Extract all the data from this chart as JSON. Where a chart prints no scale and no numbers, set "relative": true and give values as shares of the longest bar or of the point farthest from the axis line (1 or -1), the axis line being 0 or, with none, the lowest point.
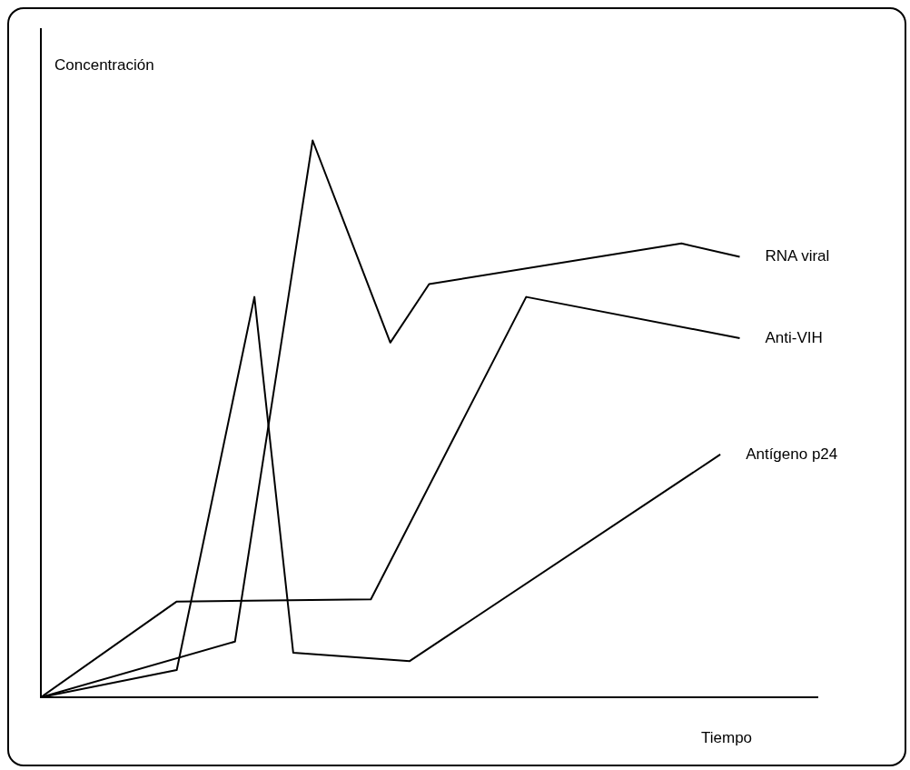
{
  "chart_data": {
    "type": "line",
    "relative": true,
    "xlabel": "Tiempo",
    "ylabel": "Concentración",
    "grid": false,
    "legend": false,
    "tick_labels": false,
    "marker": "none",
    "line_style": "solid",
    "categories": [
      null,
      null,
      null,
      null,
      null,
      null,
      null,
      null,
      null,
      null,
      null,
      null,
      null,
      null,
      null,
      null,
      null,
      null,
      null,
      null,
      null,
      null,
      null,
      null,
      null,
      null,
      null,
      null,
      null,
      null,
      null,
      null,
      null,
      null,
      null,
      null,
      null,
      null,
      null,
      null,
      null
    ],
    "series": [
      {
        "name": "RNA viral",
        "color": "#000000",
        "values": [
          0,
          null,
          null,
          null,
          null,
          null,
          null,
          null,
          null,
          null,
          0.1,
          null,
          null,
          null,
          1,
          null,
          null,
          null,
          0.637,
          null,
          0.742,
          null,
          null,
          null,
          null,
          null,
          null,
          null,
          null,
          null,
          null,
          null,
          null,
          0.815,
          null,
          null,
          0.791,
          null,
          null,
          null,
          null
        ]
      },
      {
        "name": "Anti-VIH",
        "color": "#000000",
        "values": [
          0,
          null,
          null,
          null,
          null,
          null,
          null,
          0.172,
          null,
          null,
          null,
          null,
          null,
          null,
          null,
          null,
          null,
          0.176,
          null,
          null,
          null,
          null,
          null,
          null,
          null,
          0.719,
          null,
          null,
          null,
          null,
          null,
          null,
          null,
          null,
          null,
          null,
          0.645,
          null,
          null,
          null,
          null
        ]
      },
      {
        "name": "Antígeno p24",
        "color": "#000000",
        "values": [
          0,
          null,
          null,
          null,
          null,
          null,
          null,
          0.049,
          null,
          null,
          null,
          0.719,
          null,
          0.08,
          null,
          null,
          null,
          null,
          null,
          0.065,
          null,
          null,
          null,
          null,
          null,
          null,
          null,
          null,
          null,
          null,
          null,
          null,
          null,
          null,
          null,
          0.436,
          null,
          null,
          null,
          null,
          null
        ]
      }
    ]
  }
}
